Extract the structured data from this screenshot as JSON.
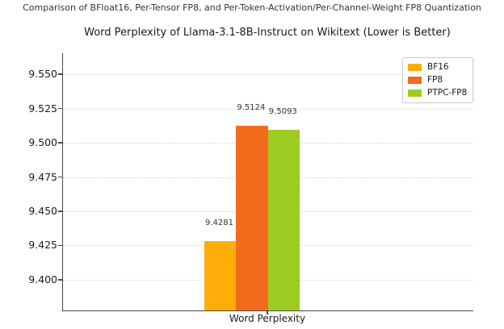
{
  "figure": {
    "suptitle": "Comparison of BFloat16, Per-Tensor FP8, and Per-Token-Activation/Per-Channel-Weight FP8 Quantization"
  },
  "chart_data": {
    "type": "bar",
    "title": "Word Perplexity of Llama-3.1-8B-Instruct on Wikitext (Lower is Better)",
    "categories": [
      "Word Perplexity"
    ],
    "series": [
      {
        "name": "BF16",
        "values": [
          9.4281
        ],
        "label": "9.4281",
        "color": "#ffad0a"
      },
      {
        "name": "FP8",
        "values": [
          9.5124
        ],
        "label": "9.5124",
        "color": "#f26b1d"
      },
      {
        "name": "PTPC-FP8",
        "values": [
          9.5093
        ],
        "label": "9.5093",
        "color": "#9ccb22"
      }
    ],
    "xlabel": "Word Perplexity",
    "ylabel": "",
    "ylim": [
      9.3776,
      9.5654
    ],
    "yticks": [
      9.4,
      9.425,
      9.45,
      9.475,
      9.5,
      9.525,
      9.55
    ],
    "ytick_labels": [
      "9.400",
      "9.425",
      "9.450",
      "9.475",
      "9.500",
      "9.525",
      "9.550"
    ],
    "grid": true,
    "grid_style": "dotted",
    "legend_position": "upper right"
  },
  "colors": {
    "spine": "#4a4a4a",
    "gridline": "#d6d6d6",
    "text": "#1a1a1a"
  }
}
